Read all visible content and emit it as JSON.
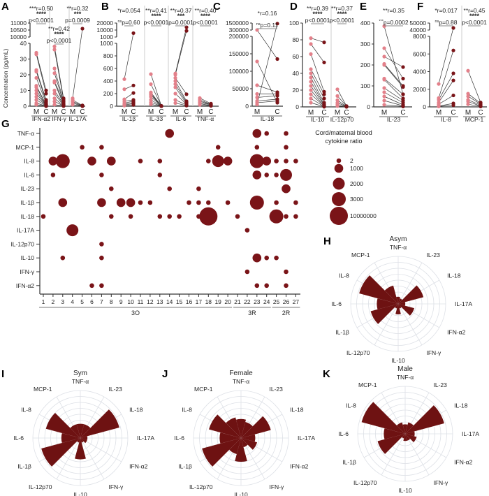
{
  "colors": {
    "maternal": "#e3808a",
    "cord": "#7a1418",
    "bubble": "#7a1418",
    "radar": "#6e1212",
    "grid": "#dde0e6"
  },
  "chart_data": [
    {
      "type": "line",
      "panel": "A",
      "ylabel": "Concentration (pg/mL)",
      "x_labels": [
        "M",
        "C"
      ],
      "y_ticks_lower": [
        0,
        10,
        20,
        30,
        40
      ],
      "y_ticks_upper": [
        10000,
        10500,
        11000
      ],
      "groups": [
        {
          "name": "IFN-α2",
          "r": "***r=0.50",
          "stars": "****",
          "p_prefix": "",
          "p": "p<0.0001",
          "M": [
            34,
            33,
            23,
            22,
            18,
            13,
            12,
            10,
            8,
            6,
            4,
            2,
            1
          ],
          "C": [
            10,
            8,
            4,
            3,
            2,
            1,
            1,
            0.5,
            0.5,
            0.3,
            0.2,
            0.1,
            0
          ]
        },
        {
          "name": "IFN-γ",
          "r": "**r=0.42",
          "stars": "****",
          "p_prefix": "",
          "p": "p<0.0001",
          "M": [
            38,
            36,
            24,
            21,
            16,
            15,
            10,
            8,
            5,
            3,
            1
          ],
          "C": [
            5,
            4,
            3,
            2,
            2,
            1,
            1,
            0.5,
            0.3,
            0.2,
            0.1
          ]
        },
        {
          "name": "IL-17A",
          "r": "**r=0.32",
          "stars": "***",
          "p_prefix": "",
          "p": "p=0.0009",
          "M": [
            5,
            4,
            3,
            3,
            2,
            1
          ],
          "C": [
            10600,
            0.5,
            0.3,
            0.2,
            0.1,
            0
          ]
        }
      ]
    },
    {
      "type": "line",
      "panel": "B",
      "x_labels": [
        "M",
        "C"
      ],
      "y_ticks_lower": [
        0,
        200,
        400,
        600,
        800,
        1000
      ],
      "y_ticks_upper": [
        1000,
        10000,
        20000
      ],
      "groups": [
        {
          "name": "IL-1β",
          "r": "*r=0.054",
          "stars": "",
          "p_prefix": "ns",
          "p": "p=0.60",
          "M": [
            430,
            270,
            110,
            80,
            50,
            30,
            20,
            10
          ],
          "C": [
            6000,
            330,
            210,
            100,
            80,
            60,
            40,
            20
          ]
        },
        {
          "name": "IL-33",
          "r": "**r=0.41",
          "stars": "****",
          "p_prefix": "",
          "p": "p<0.0001",
          "M": [
            510,
            350,
            220,
            200,
            180,
            150,
            100,
            60,
            30
          ],
          "C": [
            5,
            4,
            3,
            3,
            2,
            2,
            1,
            1,
            0
          ]
        },
        {
          "name": "IL-6",
          "r": "**r=0.37",
          "stars": "***",
          "p_prefix": "",
          "p": "p=0.0001",
          "M": [
            520,
            500,
            450,
            400,
            350,
            300,
            200,
            100,
            50
          ],
          "C": [
            14000,
            9000,
            190,
            80,
            60,
            40,
            30,
            20,
            10
          ]
        },
        {
          "name": "TNF-α",
          "r": "**r=0.40",
          "stars": "****",
          "p_prefix": "",
          "p": "p<0.0001",
          "M": [
            130,
            100,
            80,
            60,
            40,
            20
          ],
          "C": [
            40,
            30,
            25,
            20,
            10,
            5
          ]
        }
      ]
    },
    {
      "type": "line",
      "panel": "C",
      "x_labels": [
        "M",
        "C"
      ],
      "y_ticks_lower": [
        0,
        50000,
        100000,
        150000,
        200000
      ],
      "y_ticks_upper": [
        300000,
        1500000
      ],
      "groups": [
        {
          "name": "IL-18",
          "r": "*r=0.16",
          "stars": "",
          "p_prefix": "ns",
          "p": "p=0.11",
          "M": [
            310000,
            128000,
            60000,
            35000,
            25000,
            15000,
            10000,
            5000
          ],
          "C": [
            135000,
            10000,
            40000,
            35000,
            30000,
            20000,
            15000,
            1400000
          ]
        }
      ]
    },
    {
      "type": "line",
      "panel": "D",
      "x_labels": [
        "M",
        "C"
      ],
      "y_ticks_lower": [
        0,
        20,
        40,
        60,
        80,
        100
      ],
      "y_ticks_upper": [],
      "groups": [
        {
          "name": "IL-10",
          "r": "**r=0.39",
          "stars": "****",
          "p_prefix": "",
          "p": "p<0.0001",
          "M": [
            82,
            75,
            63,
            45,
            40,
            35,
            30,
            25,
            20,
            15,
            10,
            5
          ],
          "C": [
            77,
            53,
            18,
            15,
            10,
            5,
            3,
            2,
            1,
            1,
            0.5,
            0.2
          ]
        },
        {
          "name": "IL-12p70",
          "r": "**r=0.37",
          "stars": "****",
          "p_prefix": "",
          "p": "p<0.0001",
          "M": [
            21,
            13,
            8,
            5,
            3,
            1
          ],
          "C": [
            1,
            1,
            0.5,
            0.5,
            0.2,
            0.1
          ]
        }
      ]
    },
    {
      "type": "line",
      "panel": "E",
      "x_labels": [
        "M",
        "C"
      ],
      "y_ticks_lower": [
        0,
        100,
        200,
        300,
        400
      ],
      "y_ticks_upper": [],
      "groups": [
        {
          "name": "IL-23",
          "r": "**r=0.35",
          "stars": "",
          "p_prefix": "***",
          "p": "p=0.0002",
          "M": [
            385,
            280,
            240,
            205,
            200,
            135,
            130,
            90,
            70,
            50,
            30,
            10
          ],
          "C": [
            60,
            135,
            190,
            100,
            95,
            60,
            40,
            30,
            20,
            10,
            5,
            2
          ]
        }
      ]
    },
    {
      "type": "line",
      "panel": "F",
      "x_labels": [
        "M",
        "C"
      ],
      "y_ticks_lower": [
        0,
        2000,
        4000,
        6000,
        8000
      ],
      "y_ticks_upper": [
        40000,
        50000
      ],
      "groups": [
        {
          "name": "IL-8",
          "r": "*r=0.017",
          "stars": "",
          "p_prefix": "ns",
          "p": "p=0.88",
          "M": [
            2600,
            1000,
            800,
            500,
            300,
            100,
            50
          ],
          "C": [
            43000,
            6400,
            3800,
            3000,
            1300,
            400,
            200
          ]
        },
        {
          "name": "MCP-1",
          "r": "**r=0.45",
          "stars": "****",
          "p_prefix": "",
          "p": "p<0.0001",
          "M": [
            4100,
            1500,
            1200,
            800,
            600,
            300
          ],
          "C": [
            500,
            400,
            300,
            200,
            100,
            50
          ]
        }
      ]
    },
    {
      "type": "scatter",
      "panel": "G",
      "rows": [
        "TNF-α",
        "MCP-1",
        "IL-8",
        "IL-6",
        "IL-23",
        "IL-1β",
        "IL-18",
        "IL-17A",
        "IL-12p70",
        "IL-10",
        "IFN-γ",
        "IFN-α2"
      ],
      "columns": [
        1,
        2,
        3,
        4,
        5,
        6,
        7,
        8,
        9,
        10,
        11,
        12,
        13,
        14,
        15,
        16,
        17,
        18,
        19,
        20,
        21,
        22,
        23,
        24,
        25,
        26,
        27
      ],
      "column_groups": [
        {
          "label": "3O",
          "from": 1,
          "to": 20
        },
        {
          "label": "3R",
          "from": 21,
          "to": 24
        },
        {
          "label": "2R",
          "from": 25,
          "to": 27
        }
      ],
      "legend_title": [
        "Cord/maternal blood",
        "cytokine ratio"
      ],
      "legend_sizes": [
        2,
        1000,
        2000,
        3000,
        10000000
      ],
      "legend_labels": [
        "2",
        "1000",
        "2000",
        "3000",
        "10000000"
      ],
      "points": [
        [
          "TNF-α",
          14,
          1000
        ],
        [
          "TNF-α",
          23,
          1000
        ],
        [
          "TNF-α",
          24,
          2
        ],
        [
          "TNF-α",
          26,
          2
        ],
        [
          "MCP-1",
          5,
          2
        ],
        [
          "MCP-1",
          7,
          2
        ],
        [
          "MCP-1",
          19,
          2
        ],
        [
          "MCP-1",
          23,
          2
        ],
        [
          "MCP-1",
          26,
          2
        ],
        [
          "IL-8",
          2,
          1000
        ],
        [
          "IL-8",
          3,
          3000
        ],
        [
          "IL-8",
          6,
          1000
        ],
        [
          "IL-8",
          8,
          1000
        ],
        [
          "IL-8",
          11,
          2
        ],
        [
          "IL-8",
          13,
          2
        ],
        [
          "IL-8",
          18,
          2
        ],
        [
          "IL-8",
          19,
          2000
        ],
        [
          "IL-8",
          20,
          1000
        ],
        [
          "IL-8",
          23,
          3000
        ],
        [
          "IL-8",
          24,
          1000
        ],
        [
          "IL-8",
          25,
          2
        ],
        [
          "IL-8",
          26,
          2
        ],
        [
          "IL-8",
          27,
          2
        ],
        [
          "IL-6",
          2,
          2
        ],
        [
          "IL-6",
          7,
          2
        ],
        [
          "IL-6",
          13,
          2
        ],
        [
          "IL-6",
          23,
          1000
        ],
        [
          "IL-6",
          24,
          2
        ],
        [
          "IL-6",
          25,
          2
        ],
        [
          "IL-6",
          26,
          2000
        ],
        [
          "IL-23",
          8,
          2
        ],
        [
          "IL-23",
          14,
          2
        ],
        [
          "IL-23",
          17,
          2
        ],
        [
          "IL-23",
          26,
          1000
        ],
        [
          "IL-1β",
          3,
          1000
        ],
        [
          "IL-1β",
          7,
          1000
        ],
        [
          "IL-1β",
          9,
          1000
        ],
        [
          "IL-1β",
          10,
          1000
        ],
        [
          "IL-1β",
          11,
          2
        ],
        [
          "IL-1β",
          12,
          2
        ],
        [
          "IL-1β",
          16,
          2
        ],
        [
          "IL-1β",
          17,
          2
        ],
        [
          "IL-1β",
          18,
          2
        ],
        [
          "IL-1β",
          20,
          2
        ],
        [
          "IL-1β",
          23,
          3000
        ],
        [
          "IL-1β",
          25,
          2
        ],
        [
          "IL-1β",
          27,
          2
        ],
        [
          "IL-18",
          1,
          2
        ],
        [
          "IL-18",
          8,
          2
        ],
        [
          "IL-18",
          10,
          2
        ],
        [
          "IL-18",
          13,
          2
        ],
        [
          "IL-18",
          14,
          2
        ],
        [
          "IL-18",
          15,
          2
        ],
        [
          "IL-18",
          17,
          2
        ],
        [
          "IL-18",
          18,
          10000000
        ],
        [
          "IL-18",
          21,
          2
        ],
        [
          "IL-18",
          25,
          3000
        ],
        [
          "IL-18",
          26,
          2
        ],
        [
          "IL-18",
          27,
          2
        ],
        [
          "IL-17A",
          4,
          2000
        ],
        [
          "IL-17A",
          22,
          2
        ],
        [
          "IL-12p70",
          7,
          2
        ],
        [
          "IL-10",
          3,
          2
        ],
        [
          "IL-10",
          7,
          2
        ],
        [
          "IL-10",
          23,
          1000
        ],
        [
          "IL-10",
          24,
          2
        ],
        [
          "IL-10",
          25,
          2
        ],
        [
          "IFN-γ",
          22,
          2
        ],
        [
          "IFN-γ",
          26,
          2
        ],
        [
          "IFN-α2",
          6,
          2
        ],
        [
          "IFN-α2",
          7,
          2
        ],
        [
          "IFN-α2",
          23,
          2
        ],
        [
          "IFN-α2",
          24,
          2
        ],
        [
          "IFN-α2",
          26,
          2
        ]
      ]
    },
    {
      "type": "radar",
      "panels": [
        "H",
        "I",
        "J",
        "K"
      ],
      "axes": [
        "TNF-α",
        "IL-23",
        "IL-18",
        "IL-17A",
        "IFN-α2",
        "IFN-γ",
        "IL-10",
        "IL-12p70",
        "IL-1β",
        "IL-6",
        "IL-8",
        "MCP-1"
      ],
      "series": [
        {
          "name": "Asym",
          "values": [
            0.15,
            0.12,
            0.55,
            0.15,
            0.35,
            0.1,
            0.22,
            0.1,
            0.6,
            0.45,
            0.85,
            0.4
          ]
        },
        {
          "name": "Sym",
          "values": [
            0.3,
            0.3,
            0.85,
            0.15,
            0.15,
            0.1,
            0.45,
            0.1,
            0.85,
            0.4,
            0.75,
            0.3
          ]
        },
        {
          "name": "Female",
          "values": [
            0.4,
            0.35,
            0.65,
            0.3,
            0.35,
            0.2,
            0.5,
            0.35,
            0.85,
            0.45,
            0.7,
            0.45
          ]
        },
        {
          "name": "Male",
          "values": [
            0.2,
            0.25,
            0.85,
            0.2,
            0.25,
            0.15,
            0.15,
            0.1,
            0.6,
            0.45,
            0.95,
            0.25
          ]
        }
      ]
    }
  ]
}
